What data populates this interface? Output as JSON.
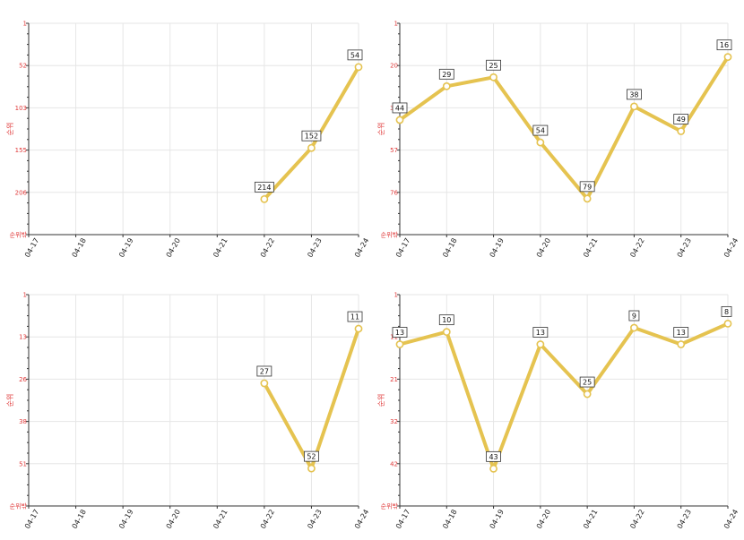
{
  "chart_data": [
    {
      "type": "line",
      "ylabel": "순위",
      "y_inverted": true,
      "y_ticks": [
        "1",
        "52",
        "103",
        "155",
        "206",
        "순위밖"
      ],
      "ylim": [
        1,
        257
      ],
      "categories": [
        "04-17",
        "04-18",
        "04-19",
        "04-20",
        "04-21",
        "04-22",
        "04-23",
        "04-24"
      ],
      "values": [
        null,
        null,
        null,
        null,
        null,
        214,
        152,
        54
      ],
      "grid": true,
      "line_color": "#e5c350"
    },
    {
      "type": "line",
      "ylabel": "순위",
      "y_inverted": true,
      "y_ticks": [
        "1",
        "20",
        "39",
        "57",
        "76",
        "순위밖"
      ],
      "ylim": [
        1,
        95
      ],
      "categories": [
        "04-17",
        "04-18",
        "04-19",
        "04-20",
        "04-21",
        "04-22",
        "04-23",
        "04-24"
      ],
      "values": [
        44,
        29,
        25,
        54,
        79,
        38,
        49,
        16
      ],
      "grid": true,
      "line_color": "#e5c350"
    },
    {
      "type": "line",
      "ylabel": "순위",
      "y_inverted": true,
      "y_ticks": [
        "1",
        "13",
        "26",
        "38",
        "51",
        "순위밖"
      ],
      "ylim": [
        1,
        63
      ],
      "categories": [
        "04-17",
        "04-18",
        "04-19",
        "04-20",
        "04-21",
        "04-22",
        "04-23",
        "04-24"
      ],
      "values": [
        null,
        null,
        null,
        null,
        null,
        27,
        52,
        11
      ],
      "grid": true,
      "line_color": "#e5c350"
    },
    {
      "type": "line",
      "ylabel": "순위",
      "y_inverted": true,
      "y_ticks": [
        "1",
        "11",
        "21",
        "32",
        "42",
        "순위밖"
      ],
      "ylim": [
        1,
        52
      ],
      "categories": [
        "04-17",
        "04-18",
        "04-19",
        "04-20",
        "04-21",
        "04-22",
        "04-23",
        "04-24"
      ],
      "values": [
        13,
        10,
        43,
        13,
        25,
        9,
        13,
        8
      ],
      "grid": true,
      "line_color": "#e5c350"
    }
  ]
}
